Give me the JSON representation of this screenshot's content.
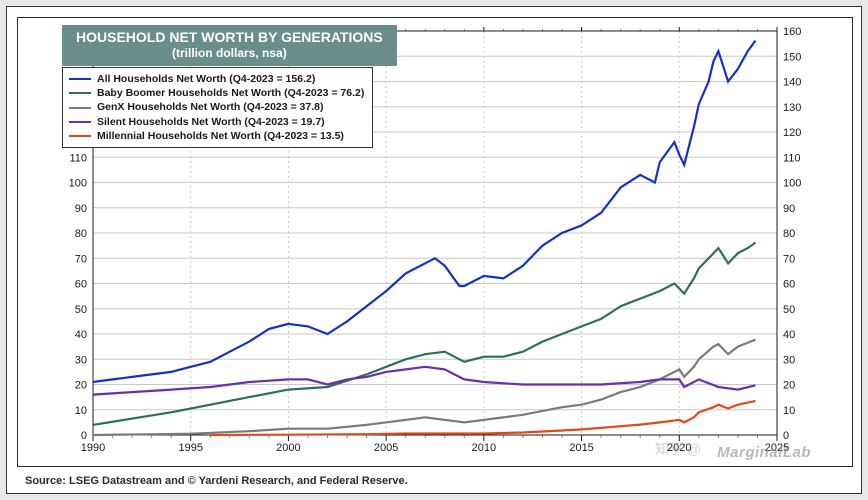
{
  "chart": {
    "type": "line",
    "title": "HOUSEHOLD NET WORTH BY GENERATIONS",
    "subtitle": "(trillion dollars, nsa)",
    "source": "Source: LSEG Datastream and © Yardeni Research, and Federal Reserve.",
    "watermark": "MarginalLab",
    "watermark2": "知乎 @",
    "background_color": "#ffffff",
    "title_bg": "#6b8e8a",
    "title_color": "#ffffff",
    "grid_color": "#c8c8c8",
    "border_color": "#2b2b2b",
    "font_family": "Arial",
    "title_fontsize": 14,
    "legend_fontsize": 10.5,
    "axis_fontsize": 11,
    "x": {
      "min": 1990,
      "max": 2025,
      "major_ticks": [
        1990,
        1995,
        2000,
        2005,
        2010,
        2015,
        2020,
        2025
      ],
      "labels": [
        "1990",
        "1995",
        "2000",
        "2005",
        "2010",
        "2015",
        "2020",
        "2025"
      ],
      "minor_step": 1
    },
    "y": {
      "min": 0,
      "max": 160,
      "tick_step": 10,
      "dual_axis": true
    },
    "legend": {
      "position": "upper-left",
      "border_color": "#333333",
      "bg": "#ffffff",
      "items": [
        {
          "label": "All Households Net Worth (Q4-2023 = 156.2)",
          "color": "#1530c9"
        },
        {
          "label": "Baby Boomer Households Net Worth (Q4-2023 = 76.2)",
          "color": "#2f6f54"
        },
        {
          "label": "GenX Households Net Worth (Q4-2023 = 37.8)",
          "color": "#7a7a7a"
        },
        {
          "label": "Silent Households Net Worth (Q4-2023 = 19.7)",
          "color": "#6a2fb0"
        },
        {
          "label": "Millennial Households Net Worth (Q4-2023 = 13.5)",
          "color": "#e04a1b"
        }
      ]
    },
    "series": [
      {
        "name": "all",
        "color": "#1530c9",
        "line_width": 2.4,
        "x": [
          1990,
          1991,
          1992,
          1993,
          1994,
          1995,
          1996,
          1997,
          1998,
          1999,
          2000,
          2001,
          2002,
          2003,
          2004,
          2005,
          2006,
          2007,
          2007.5,
          2008,
          2008.75,
          2009,
          2010,
          2011,
          2012,
          2013,
          2014,
          2015,
          2016,
          2017,
          2018,
          2018.75,
          2019,
          2019.75,
          2020,
          2020.25,
          2020.75,
          2021,
          2021.5,
          2021.75,
          2022,
          2022.5,
          2023,
          2023.5,
          2023.9
        ],
        "y": [
          21,
          22,
          23,
          24,
          25,
          27,
          29,
          33,
          37,
          42,
          44,
          43,
          40,
          45,
          51,
          57,
          64,
          68,
          70,
          67,
          59,
          59,
          63,
          62,
          67,
          75,
          80,
          83,
          88,
          98,
          103,
          100,
          108,
          116,
          111,
          107,
          122,
          131,
          140,
          148,
          152,
          140,
          145,
          152,
          156.2
        ]
      },
      {
        "name": "boomer",
        "color": "#2f6f54",
        "line_width": 2.2,
        "x": [
          1990,
          1992,
          1994,
          1996,
          1998,
          2000,
          2002,
          2004,
          2005,
          2006,
          2007,
          2008,
          2009,
          2010,
          2011,
          2012,
          2013,
          2014,
          2015,
          2016,
          2017,
          2018,
          2019,
          2019.75,
          2020.25,
          2020.75,
          2021,
          2021.5,
          2022,
          2022.5,
          2023,
          2023.5,
          2023.9
        ],
        "y": [
          4,
          6.5,
          9,
          12,
          15,
          18,
          19,
          24,
          27,
          30,
          32,
          33,
          29,
          31,
          31,
          33,
          37,
          40,
          43,
          46,
          51,
          54,
          57,
          60,
          56,
          62,
          66,
          70,
          74,
          68,
          72,
          74,
          76.2
        ]
      },
      {
        "name": "genx",
        "color": "#7a7a7a",
        "line_width": 2.2,
        "x": [
          1990,
          1995,
          1998,
          2000,
          2002,
          2004,
          2006,
          2007,
          2008,
          2009,
          2010,
          2012,
          2014,
          2015,
          2016,
          2017,
          2018,
          2019,
          2020,
          2020.25,
          2020.75,
          2021,
          2021.75,
          2022,
          2022.5,
          2023,
          2023.9
        ],
        "y": [
          0,
          0.5,
          1.5,
          2.5,
          2.5,
          4,
          6,
          7,
          6,
          5,
          6,
          8,
          11,
          12,
          14,
          17,
          19,
          22,
          26,
          23,
          27,
          30,
          35,
          36,
          32,
          35,
          37.8
        ]
      },
      {
        "name": "silent",
        "color": "#6a2fb0",
        "line_width": 2.2,
        "x": [
          1990,
          1992,
          1994,
          1996,
          1998,
          2000,
          2001,
          2002,
          2003,
          2004,
          2005,
          2006,
          2007,
          2008,
          2009,
          2010,
          2012,
          2014,
          2016,
          2018,
          2019,
          2020,
          2020.25,
          2021,
          2022,
          2023,
          2023.9
        ],
        "y": [
          16,
          17,
          18,
          19,
          21,
          22,
          22,
          20,
          22,
          23,
          25,
          26,
          27,
          26,
          22,
          21,
          20,
          20,
          20,
          21,
          22,
          22,
          19,
          22,
          19,
          18,
          19.7
        ]
      },
      {
        "name": "millennial",
        "color": "#e04a1b",
        "line_width": 2.2,
        "x": [
          1996,
          2000,
          2004,
          2006,
          2008,
          2010,
          2012,
          2014,
          2015,
          2016,
          2017,
          2018,
          2019,
          2020,
          2020.25,
          2020.75,
          2021,
          2021.75,
          2022,
          2022.5,
          2023,
          2023.9
        ],
        "y": [
          0,
          0.1,
          0.3,
          0.6,
          0.6,
          0.6,
          1,
          1.8,
          2.2,
          2.8,
          3.5,
          4.1,
          5,
          6,
          5,
          7,
          9,
          11,
          12,
          10.5,
          12,
          13.5
        ]
      }
    ]
  }
}
